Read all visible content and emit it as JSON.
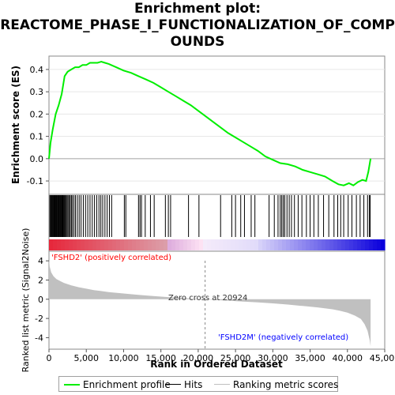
{
  "title_line1": "Enrichment plot:",
  "title_line2": "REACTOME_PHASE_I_FUNCTIONALIZATION_OF_COMP",
  "title_line3": "OUNDS",
  "colors": {
    "enrichment": "#00ee00",
    "hits": "#000000",
    "ranking": "#c0c0c0",
    "positive": "#ff0000",
    "negative": "#0000ff"
  },
  "chart_data": {
    "type": "line",
    "top_panel": {
      "ylabel": "Enrichment score (ES)",
      "ylim": [
        -0.16,
        0.46
      ],
      "yticks": [
        -0.1,
        0.0,
        0.1,
        0.2,
        0.3,
        0.4
      ],
      "ytick_labels": [
        "-0.1",
        "0.0",
        "0.1",
        "0.2",
        "0.3",
        "0.4"
      ],
      "series": [
        {
          "name": "Enrichment profile",
          "x": [
            0,
            200,
            500,
            900,
            1300,
            1700,
            2100,
            2500,
            3000,
            3500,
            4000,
            4500,
            5000,
            5500,
            6000,
            6500,
            7000,
            7500,
            8000,
            9000,
            10000,
            11000,
            12000,
            13000,
            14000,
            15000,
            16000,
            17000,
            18000,
            19000,
            20000,
            21000,
            22000,
            23000,
            24000,
            25000,
            26000,
            27000,
            28000,
            29000,
            30000,
            31000,
            32000,
            33000,
            34000,
            35000,
            36000,
            37000,
            38000,
            38800,
            39500,
            40200,
            40800,
            41400,
            42000,
            42500,
            42800,
            43100
          ],
          "y": [
            0.0,
            0.07,
            0.13,
            0.2,
            0.24,
            0.29,
            0.37,
            0.39,
            0.4,
            0.41,
            0.41,
            0.42,
            0.42,
            0.43,
            0.43,
            0.43,
            0.435,
            0.43,
            0.425,
            0.41,
            0.395,
            0.385,
            0.37,
            0.355,
            0.34,
            0.32,
            0.3,
            0.28,
            0.26,
            0.24,
            0.215,
            0.19,
            0.165,
            0.14,
            0.115,
            0.095,
            0.075,
            0.055,
            0.035,
            0.01,
            -0.005,
            -0.02,
            -0.025,
            -0.035,
            -0.05,
            -0.06,
            -0.07,
            -0.08,
            -0.1,
            -0.115,
            -0.12,
            -0.11,
            -0.12,
            -0.105,
            -0.095,
            -0.1,
            -0.06,
            0.0
          ]
        }
      ]
    },
    "hits_panel": {
      "hit_positions": [
        120,
        220,
        330,
        410,
        500,
        590,
        680,
        760,
        840,
        930,
        1010,
        1100,
        1190,
        1280,
        1360,
        1450,
        1540,
        1620,
        1710,
        1800,
        1890,
        1980,
        2080,
        2180,
        2300,
        2420,
        2550,
        2700,
        2850,
        3000,
        3150,
        3350,
        3550,
        3800,
        4050,
        4300,
        4600,
        4900,
        5200,
        5500,
        5800,
        6100,
        6400,
        6700,
        6950,
        7200,
        7500,
        7800,
        8100,
        8400,
        10100,
        10300,
        12000,
        12200,
        12400,
        12900,
        13600,
        14100,
        15600,
        16000,
        16300,
        18700,
        20100,
        23000,
        24500,
        25000,
        25700,
        26200,
        27100,
        27600,
        29500,
        30200,
        30700,
        31000,
        31200,
        31400,
        31600,
        31900,
        32200,
        32500,
        32900,
        33400,
        33900,
        34500,
        35000,
        35500,
        36100,
        36800,
        37500,
        38200,
        38700,
        39100,
        39500,
        40100,
        40600,
        41200,
        41700,
        42200,
        42700,
        42950,
        43050
      ]
    },
    "bottom_panel": {
      "ylabel": "Ranked list metric (Signal2Noise)",
      "xlabel": "Rank in Ordered Dataset",
      "xlim": [
        0,
        45000
      ],
      "ylim": [
        -5.2,
        5.0
      ],
      "xticks": [
        0,
        5000,
        10000,
        15000,
        20000,
        25000,
        30000,
        35000,
        40000,
        45000
      ],
      "xtick_labels": [
        "0",
        "5,000",
        "10,000",
        "15,000",
        "20,000",
        "25,000",
        "30,000",
        "35,000",
        "40,000",
        "45,000"
      ],
      "yticks": [
        -4,
        -2,
        0,
        2,
        4
      ],
      "ytick_labels": [
        "-4",
        "-2",
        "0",
        "2",
        "4"
      ],
      "series": [
        {
          "name": "Ranking metric scores",
          "x": [
            0,
            100,
            300,
            600,
            1000,
            1500,
            2000,
            3000,
            4000,
            5000,
            6000,
            8000,
            10000,
            12000,
            14000,
            16000,
            18000,
            20000,
            20924,
            22000,
            24000,
            26000,
            28000,
            30000,
            32000,
            34000,
            36000,
            38000,
            39000,
            40000,
            41000,
            41800,
            42300,
            42700,
            43000,
            43100
          ],
          "y": [
            4.2,
            3.4,
            2.8,
            2.4,
            2.1,
            1.9,
            1.7,
            1.45,
            1.25,
            1.1,
            0.95,
            0.75,
            0.6,
            0.45,
            0.33,
            0.22,
            0.13,
            0.05,
            0.0,
            -0.06,
            -0.15,
            -0.24,
            -0.33,
            -0.43,
            -0.55,
            -0.7,
            -0.85,
            -1.05,
            -1.2,
            -1.4,
            -1.7,
            -2.05,
            -2.6,
            -3.3,
            -4.3,
            -4.9
          ]
        }
      ],
      "zero_cross_label": "Zero cross at 20924",
      "zero_cross": 20924,
      "positive_label": "'FSHD2' (positively correlated)",
      "negative_label": "'FSHD2M' (negatively correlated)"
    },
    "legend": [
      "Enrichment profile",
      "Hits",
      "Ranking metric scores"
    ]
  }
}
